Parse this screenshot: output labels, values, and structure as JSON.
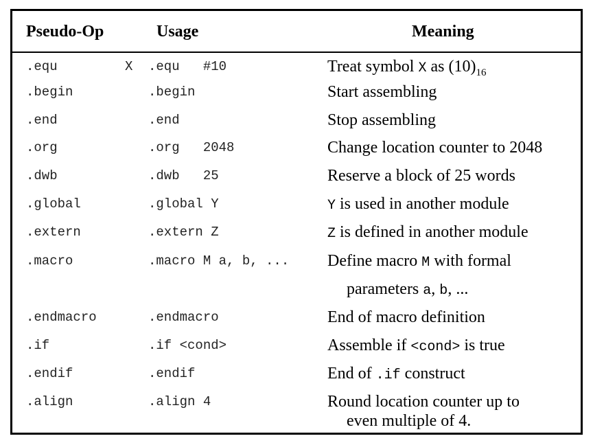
{
  "headers": {
    "op": "Pseudo-Op",
    "usage": "Usage",
    "meaning": "Meaning"
  },
  "rows": [
    {
      "op": ".equ",
      "usage_label": "X",
      "usage": ".equ   #10",
      "meaning": {
        "pre": "Treat symbol ",
        "code": "X",
        "mid": " as (10)",
        "sub": "16",
        "post": ""
      }
    },
    {
      "op": ".begin",
      "usage": ".begin",
      "meaning": {
        "text": "Start assembling"
      }
    },
    {
      "op": ".end",
      "usage": ".end",
      "meaning": {
        "text": "Stop assembling"
      }
    },
    {
      "op": ".org",
      "usage": ".org   2048",
      "meaning": {
        "text": "Change location counter to 2048"
      }
    },
    {
      "op": ".dwb",
      "usage": ".dwb   25",
      "meaning": {
        "text": "Reserve a block of 25 words"
      }
    },
    {
      "op": ".global",
      "usage": ".global Y",
      "meaning": {
        "code": "Y",
        "post": " is used in another module"
      }
    },
    {
      "op": ".extern",
      "usage": ".extern Z",
      "meaning": {
        "code": "Z",
        "post": " is defined in another module"
      }
    },
    {
      "op": ".macro",
      "usage": ".macro M a, b, ...",
      "meaning": {
        "pre": "Define macro ",
        "code": "M",
        "post": " with formal"
      },
      "meaning_line2": {
        "pre": "parameters ",
        "code": "a",
        "mid": ", ",
        "code2": "b",
        "post": ", ..."
      }
    },
    {
      "op": ".endmacro",
      "usage": ".endmacro",
      "meaning": {
        "text": "End of macro definition"
      }
    },
    {
      "op": ".if",
      "usage": ".if <cond>",
      "meaning": {
        "pre": "Assemble if ",
        "code": "<cond>",
        "post": " is true"
      }
    },
    {
      "op": ".endif",
      "usage": ".endif",
      "meaning": {
        "pre": "End of ",
        "code": ".if",
        "post": " construct"
      }
    },
    {
      "op": ".align",
      "usage": ".align 4",
      "meaning": {
        "text": "Round location counter up to"
      },
      "meaning_line2": {
        "text": "even multiple of 4."
      }
    }
  ]
}
